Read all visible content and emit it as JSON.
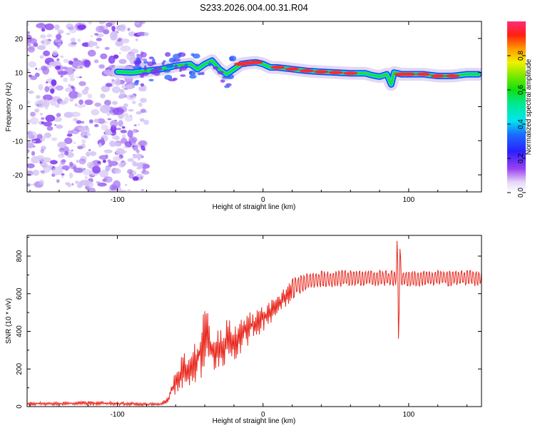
{
  "colors": {
    "snr_line": "#e8281e",
    "ridge_outer": "#d6c8f0",
    "ridge_mid": "#1a3cff",
    "ridge_inner": "#00e0e8",
    "ridge_core": "#22dd22",
    "ridge_peak": "#ff2a2a",
    "noise": "#8a3cf0"
  },
  "chart_data": [
    {
      "type": "heatmap",
      "title": "S233.2026.004.00.31.R04",
      "xlabel": "Height of straight line (km)",
      "ylabel": "Frequency (Hz)",
      "xlim": [
        -162,
        150
      ],
      "ylim": [
        -25,
        25
      ],
      "xticks": [
        "-100",
        "0",
        "100"
      ],
      "xtick_values": [
        -100,
        0,
        100
      ],
      "yticks": [
        "20",
        "10",
        "0",
        "-10",
        "-20"
      ],
      "ytick_values": [
        20,
        10,
        0,
        -10,
        -20
      ],
      "colorbar": {
        "label": "Normalized spectral amplitude",
        "ticks": [
          "0.0",
          "0.2",
          "0.4",
          "0.6",
          "0.8"
        ],
        "tick_values": [
          0.0,
          0.2,
          0.4,
          0.6,
          0.8
        ],
        "range": [
          0,
          1
        ]
      },
      "noise_region_x": [
        -162,
        -80
      ],
      "ridge": {
        "x": [
          -100,
          -90,
          -80,
          -70,
          -60,
          -50,
          -45,
          -40,
          -35,
          -30,
          -25,
          -20,
          -15,
          -10,
          -5,
          0,
          5,
          10,
          20,
          30,
          40,
          50,
          60,
          70,
          75,
          80,
          85,
          88,
          90,
          95,
          100,
          110,
          120,
          130,
          140,
          148
        ],
        "y": [
          10.2,
          10,
          10.5,
          11,
          12,
          12.5,
          11,
          12.5,
          13.5,
          11,
          9.5,
          11,
          12.5,
          12.8,
          13,
          12.5,
          11.5,
          11.5,
          11,
          10.5,
          10.2,
          10,
          9.8,
          9.8,
          9.2,
          8.8,
          9.5,
          6.5,
          10,
          9.5,
          9.5,
          9.5,
          9,
          9,
          9.5,
          9.5
        ],
        "amplitude": [
          0.35,
          0.4,
          0.45,
          0.5,
          0.6,
          0.55,
          0.5,
          0.6,
          0.65,
          0.55,
          0.6,
          0.75,
          0.85,
          0.9,
          0.85,
          0.75,
          0.75,
          0.85,
          0.9,
          0.85,
          0.95,
          0.9,
          0.85,
          0.75,
          0.7,
          0.6,
          0.55,
          0.45,
          0.6,
          0.85,
          0.95,
          0.95,
          0.9,
          0.9,
          0.75,
          0.6
        ]
      }
    },
    {
      "type": "line",
      "xlabel": "Height of straight line (km)",
      "ylabel": "SNR (10 * v/v)",
      "xlim": [
        -162,
        150
      ],
      "ylim": [
        0,
        910
      ],
      "xticks": [
        "-100",
        "0",
        "100"
      ],
      "xtick_values": [
        -100,
        0,
        100
      ],
      "yticks": [
        "0",
        "200",
        "400",
        "600",
        "800"
      ],
      "ytick_values": [
        0,
        200,
        400,
        600,
        800
      ],
      "series": [
        {
          "name": "SNR",
          "x": [
            -162,
            -140,
            -120,
            -100,
            -90,
            -80,
            -75,
            -70,
            -65,
            -60,
            -55,
            -50,
            -45,
            -40,
            -35,
            -30,
            -25,
            -20,
            -15,
            -10,
            -5,
            0,
            5,
            10,
            15,
            20,
            25,
            30,
            40,
            50,
            60,
            70,
            80,
            85,
            88,
            91,
            92,
            93,
            94,
            95,
            100,
            110,
            120,
            130,
            140,
            150
          ],
          "envelope_min": [
            5,
            5,
            5,
            5,
            5,
            5,
            5,
            5,
            20,
            60,
            80,
            100,
            120,
            140,
            170,
            200,
            220,
            240,
            280,
            320,
            360,
            400,
            440,
            480,
            520,
            560,
            600,
            620,
            630,
            635,
            640,
            640,
            640,
            640,
            640,
            640,
            640,
            340,
            640,
            640,
            640,
            640,
            640,
            640,
            640,
            640
          ],
          "envelope_max": [
            25,
            25,
            30,
            25,
            25,
            20,
            20,
            20,
            60,
            200,
            280,
            320,
            380,
            550,
            420,
            420,
            460,
            460,
            480,
            500,
            520,
            540,
            560,
            600,
            640,
            680,
            700,
            710,
            720,
            725,
            725,
            725,
            725,
            725,
            725,
            725,
            910,
            725,
            860,
            725,
            725,
            725,
            725,
            725,
            725,
            725
          ]
        }
      ]
    }
  ]
}
